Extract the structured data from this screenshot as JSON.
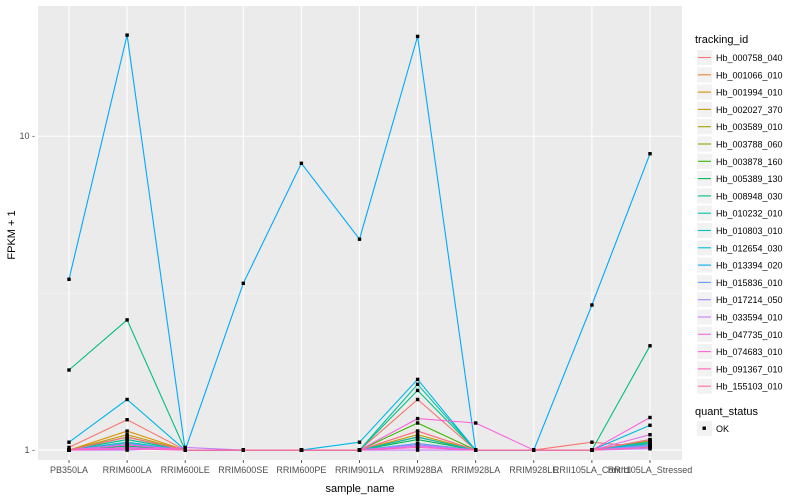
{
  "chart_data": {
    "type": "line",
    "xlabel": "sample_name",
    "ylabel": "FPKM + 1",
    "y_scale": "log10",
    "ylim": [
      0.93,
      26
    ],
    "y_ticks": [
      1,
      10
    ],
    "y_tick_labels": [
      "1 -",
      "10 -"
    ],
    "grid": true,
    "legend_position": "right",
    "categories": [
      "PB350LA",
      "RRIM600LA",
      "RRIM600LE",
      "RRIM600SE",
      "RRIM600PE",
      "RRIM901LA",
      "RRIM928BA",
      "RRIM928LA",
      "RRIM928LE",
      "RRII105LA_Control",
      "RRII105LA_Stressed"
    ],
    "series": [
      {
        "name": "Hb_000758_040",
        "color": "#F8766D",
        "values": [
          1.02,
          1.25,
          1.0,
          1.0,
          1.0,
          1.0,
          1.45,
          1.0,
          1.0,
          1.06,
          1.02
        ]
      },
      {
        "name": "Hb_001066_010",
        "color": "#EA8331",
        "values": [
          1.0,
          1.1,
          1.0,
          1.0,
          1.0,
          1.0,
          1.1,
          1.0,
          1.0,
          1.0,
          1.05
        ]
      },
      {
        "name": "Hb_001994_010",
        "color": "#D89000",
        "values": [
          1.0,
          1.15,
          1.0,
          1.0,
          1.0,
          1.0,
          1.15,
          1.0,
          1.0,
          1.0,
          1.03
        ]
      },
      {
        "name": "Hb_002027_370",
        "color": "#C09B00",
        "values": [
          1.0,
          1.12,
          1.0,
          1.0,
          1.0,
          1.0,
          1.12,
          1.0,
          1.0,
          1.0,
          1.04
        ]
      },
      {
        "name": "Hb_003589_010",
        "color": "#A3A500",
        "values": [
          1.0,
          1.08,
          1.0,
          1.0,
          1.0,
          1.0,
          1.1,
          1.0,
          1.0,
          1.0,
          1.07
        ]
      },
      {
        "name": "Hb_003788_060",
        "color": "#7CAE00",
        "values": [
          1.0,
          1.05,
          1.0,
          1.0,
          1.0,
          1.0,
          1.05,
          1.0,
          1.0,
          1.0,
          1.06
        ]
      },
      {
        "name": "Hb_003878_160",
        "color": "#39B600",
        "values": [
          1.0,
          1.1,
          1.0,
          1.0,
          1.0,
          1.0,
          1.22,
          1.0,
          1.0,
          1.0,
          1.08
        ]
      },
      {
        "name": "Hb_005389_130",
        "color": "#00BB4E",
        "values": [
          1.0,
          1.03,
          1.0,
          1.0,
          1.0,
          1.0,
          1.08,
          1.0,
          1.0,
          1.0,
          1.02
        ]
      },
      {
        "name": "Hb_008948_030",
        "color": "#00BF7D",
        "values": [
          1.8,
          2.6,
          1.0,
          1.0,
          1.0,
          1.0,
          1.55,
          1.0,
          1.0,
          1.0,
          2.15
        ]
      },
      {
        "name": "Hb_010232_010",
        "color": "#00C1A3",
        "values": [
          1.0,
          1.08,
          1.0,
          1.0,
          1.0,
          1.0,
          1.62,
          1.0,
          1.0,
          1.0,
          1.05
        ]
      },
      {
        "name": "Hb_010803_010",
        "color": "#00BFC4",
        "values": [
          1.0,
          1.06,
          1.0,
          1.0,
          1.0,
          1.0,
          1.1,
          1.0,
          1.0,
          1.0,
          1.06
        ]
      },
      {
        "name": "Hb_012654_030",
        "color": "#00B8E7",
        "values": [
          1.06,
          1.45,
          1.0,
          1.0,
          1.0,
          1.06,
          1.68,
          1.0,
          1.0,
          1.0,
          1.2
        ]
      },
      {
        "name": "Hb_013394_020",
        "color": "#00A9FF",
        "values": [
          3.5,
          21.0,
          1.0,
          3.4,
          8.2,
          4.7,
          20.8,
          1.0,
          1.0,
          2.9,
          8.8
        ]
      },
      {
        "name": "Hb_015836_010",
        "color": "#619CFF",
        "values": [
          1.0,
          1.05,
          1.0,
          1.0,
          1.0,
          1.0,
          1.05,
          1.0,
          1.0,
          1.0,
          1.04
        ]
      },
      {
        "name": "Hb_017214_050",
        "color": "#9590FF",
        "values": [
          1.0,
          1.02,
          1.0,
          1.0,
          1.0,
          1.0,
          1.04,
          1.0,
          1.0,
          1.0,
          1.03
        ]
      },
      {
        "name": "Hb_033594_010",
        "color": "#C77CFF",
        "values": [
          1.0,
          1.0,
          1.02,
          1.0,
          1.0,
          1.0,
          1.0,
          1.0,
          1.0,
          1.0,
          1.01
        ]
      },
      {
        "name": "Hb_047735_010",
        "color": "#E76BF3",
        "values": [
          1.0,
          1.02,
          1.0,
          1.0,
          1.0,
          1.0,
          1.03,
          1.0,
          1.0,
          1.0,
          1.12
        ]
      },
      {
        "name": "Hb_074683_010",
        "color": "#FA62DB",
        "values": [
          1.0,
          1.04,
          1.0,
          1.0,
          1.0,
          1.0,
          1.26,
          1.22,
          1.0,
          1.0,
          1.27
        ]
      },
      {
        "name": "Hb_091367_010",
        "color": "#FF62BC",
        "values": [
          1.0,
          1.01,
          1.0,
          1.0,
          1.0,
          1.0,
          1.02,
          1.0,
          1.0,
          1.0,
          1.02
        ]
      },
      {
        "name": "Hb_155103_010",
        "color": "#FF6C91",
        "values": [
          1.0,
          1.1,
          1.0,
          1.0,
          1.0,
          1.0,
          1.15,
          1.0,
          1.0,
          1.0,
          1.08
        ]
      }
    ],
    "legend": {
      "title": "tracking_id",
      "shape_title": "quant_status",
      "shape_entry": "OK"
    },
    "colors": {
      "panel_bg": "#EBEBEB",
      "grid_major": "#FFFFFF",
      "point": "#000000"
    }
  }
}
